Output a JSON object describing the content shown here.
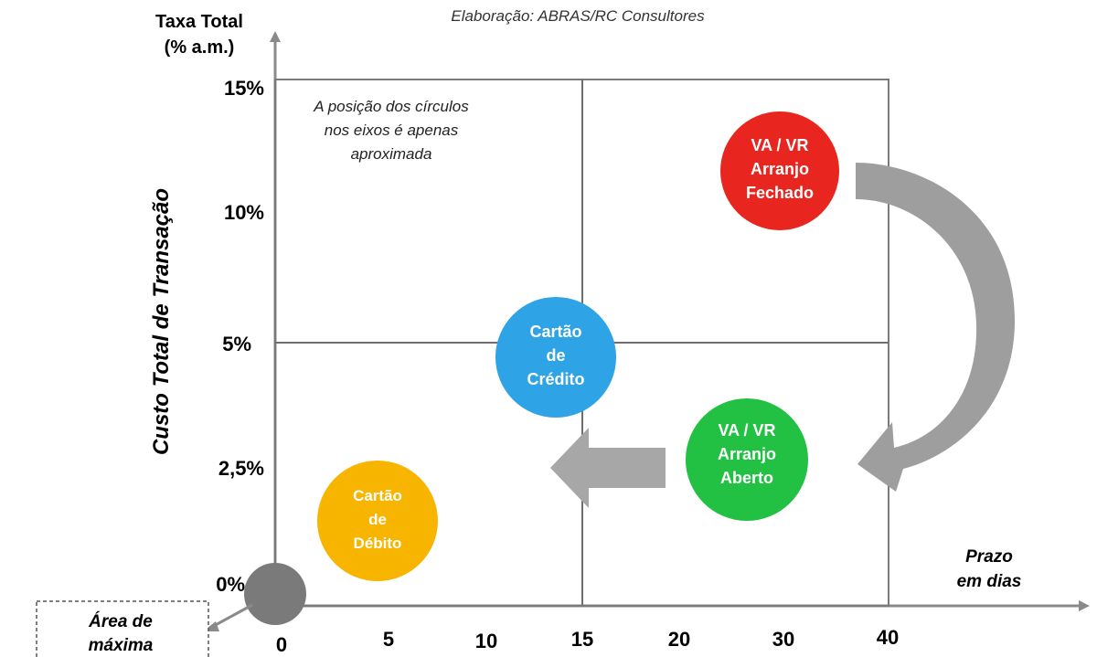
{
  "source_note": "Elaboração: ABRAS/RC Consultores",
  "y_axis": {
    "unit_title_line1": "Taxa Total",
    "unit_title_line2": "(% a.m.)",
    "title": "Custo Total de Transação",
    "ticks": [
      "15%",
      "10%",
      "5%",
      "2,5%",
      "0%"
    ]
  },
  "x_axis": {
    "title_line1": "Prazo",
    "title_line2": "em dias",
    "ticks": [
      "0",
      "5",
      "10",
      "15",
      "20",
      "30",
      "40"
    ]
  },
  "note_lines": [
    "A posição dos círculos",
    "nos eixos é apenas",
    "aproximada"
  ],
  "circles": [
    {
      "lines": [
        "VA / VR",
        "Arranjo",
        "Fechado"
      ],
      "color": "#e8251f"
    },
    {
      "lines": [
        "Cartão",
        "de",
        "Crédito"
      ],
      "color": "#2ea3e5"
    },
    {
      "lines": [
        "VA / VR",
        "Arranjo",
        "Aberto"
      ],
      "color": "#22c144"
    },
    {
      "lines": [
        "Cartão",
        "de",
        "Débito"
      ],
      "color": "#f7b500"
    },
    {
      "lines": [],
      "color": "#7a7a7a"
    }
  ],
  "callout_lines": [
    "Área de",
    "máxima"
  ],
  "colors": {
    "axis": "#8a8a8a",
    "grid": "#6f6f6f",
    "arrow": "#9e9e9e"
  }
}
